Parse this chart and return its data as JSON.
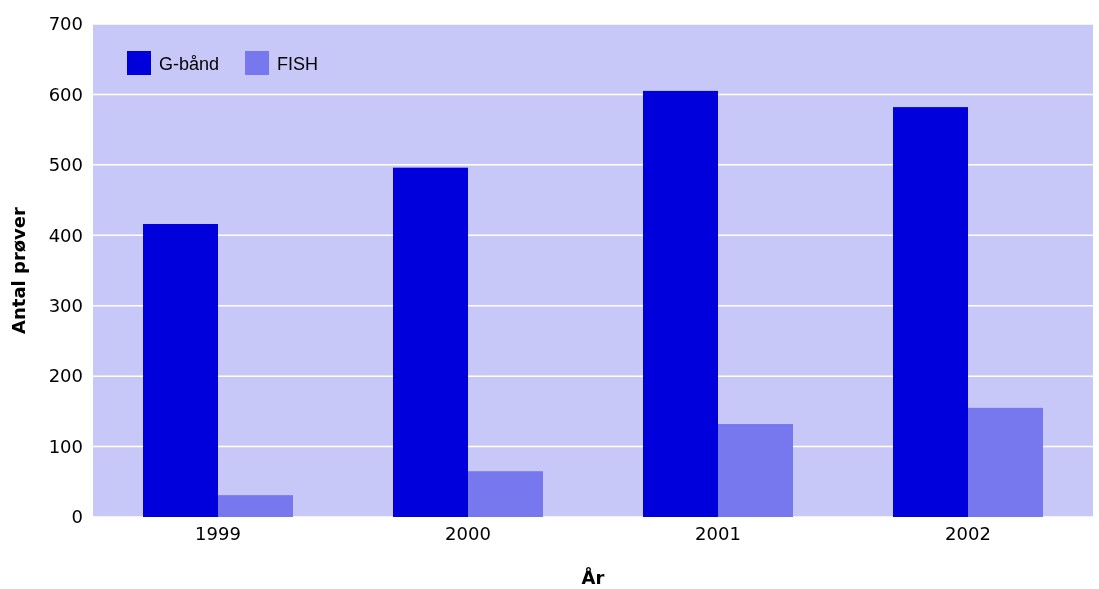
{
  "chart_data": {
    "type": "bar",
    "xlabel": "År",
    "ylabel": "Antal prøver",
    "categories": [
      "1999",
      "2000",
      "2001",
      "2002"
    ],
    "series": [
      {
        "name": "G-bånd",
        "color": "#0000dd",
        "values": [
          416,
          496,
          605,
          582
        ]
      },
      {
        "name": "FISH",
        "color": "#7777ee",
        "values": [
          31,
          65,
          132,
          155
        ]
      }
    ],
    "ylim": [
      0,
      700
    ],
    "yticks": [
      0,
      100,
      200,
      300,
      400,
      500,
      600,
      700
    ],
    "grid": "y",
    "legend": "top left"
  }
}
